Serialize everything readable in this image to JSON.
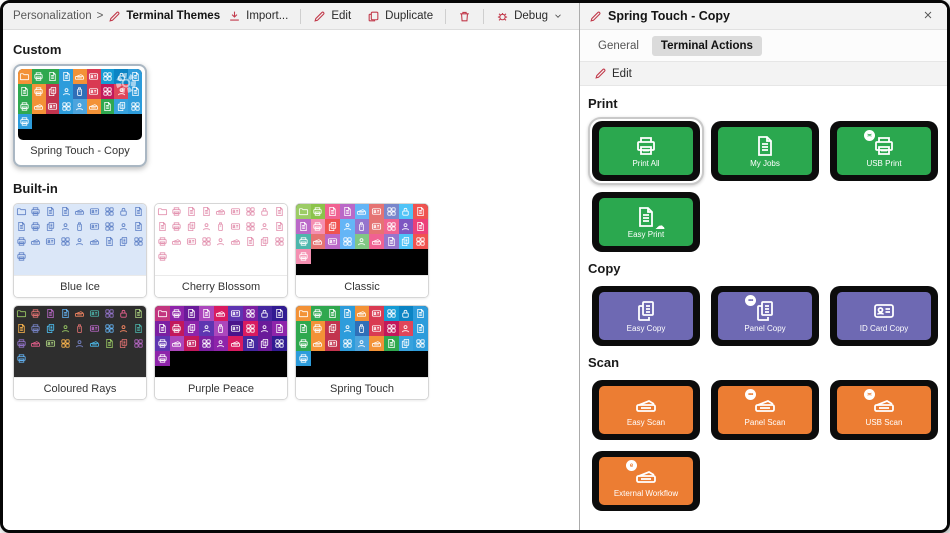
{
  "toolbar": {
    "breadcrumb": {
      "parent": "Personalization",
      "separator": ">",
      "current": "Terminal Themes"
    },
    "import_label": "Import...",
    "edit_label": "Edit",
    "duplicate_label": "Duplicate",
    "debug_label": "Debug",
    "accent_color": "#C23B4C"
  },
  "left_panel": {
    "sections": [
      {
        "title": "Custom",
        "themes": [
          {
            "name": "Spring Touch - Copy",
            "style": "mosaic",
            "bg": "#000000",
            "icon_color": "#FFFFFF",
            "selected": true,
            "overlay_icon": "gear-icon",
            "palette": [
              "#F39237",
              "#2FA84F",
              "#2FA84F",
              "#2D9CDB",
              "#F39237",
              "#D93A52",
              "#159BD4",
              "#0B84C4",
              "#2D9CDB",
              "#2FA84F",
              "#F39237",
              "#C2344E",
              "#2D9CDB",
              "#2F6FB8",
              "#D93A52",
              "#C2185B",
              "#E0465A",
              "#2D9CDB",
              "#2FA84F",
              "#F39237",
              "#C2344E",
              "#2D9CDB",
              "#4DA4DD",
              "#F39237",
              "#2FA84F",
              "#37A2DD",
              "#2D9CDB",
              "#2D9CDB"
            ]
          }
        ]
      },
      {
        "title": "Built-in",
        "themes": [
          {
            "name": "Blue Ice",
            "style": "outline",
            "bg": "#DBE7F8",
            "icon_color": "#5C7FC5",
            "selected": false
          },
          {
            "name": "Cherry Blossom",
            "style": "outline",
            "bg": "#FFFFFF",
            "icon_color": "#E28FAD",
            "selected": false
          },
          {
            "name": "Classic",
            "style": "mosaic",
            "bg": "#000000",
            "icon_color": "#FFFFFF",
            "selected": false,
            "palette": [
              "#9CCC65",
              "#8BC34A",
              "#F06292",
              "#BA68C8",
              "#64B5F6",
              "#E57373",
              "#7986CB",
              "#4FC3F7",
              "#EF5350",
              "#BA68C8",
              "#F48FB1",
              "#EF5350",
              "#64B5F6",
              "#9575CD",
              "#E57373",
              "#F06292",
              "#7E57C2",
              "#EC407A",
              "#4DB6AC",
              "#E57373",
              "#BA68C8",
              "#64B5F6",
              "#81C784",
              "#F06292",
              "#9575CD",
              "#4FC3F7",
              "#EF5350",
              "#F48FB1"
            ]
          },
          {
            "name": "Coloured Rays",
            "style": "outline-multi",
            "bg": "#2E2E2E",
            "selected": false,
            "palette": [
              "#9CCC65",
              "#E57373",
              "#BA68C8",
              "#64B5F6",
              "#FF8A65",
              "#4DB6AC",
              "#9575CD",
              "#F06292",
              "#AED581",
              "#FFB74D",
              "#7986CB",
              "#4FC3F7"
            ]
          },
          {
            "name": "Purple Peace",
            "style": "mosaic",
            "bg": "#000000",
            "icon_color": "#FFFFFF",
            "selected": false,
            "palette": [
              "#C2357F",
              "#8E24AA",
              "#6A1B9A",
              "#AB47BC",
              "#D81B60",
              "#5E35B1",
              "#7B1FA2",
              "#4527A0",
              "#311B92",
              "#7B1FA2",
              "#C2185B",
              "#8E24AA",
              "#5E35B1",
              "#AB47BC",
              "#4A148C",
              "#D81B60",
              "#6A1B9A",
              "#8E24AA",
              "#5E35B1",
              "#AB47BC",
              "#C2185B",
              "#7B1FA2",
              "#8E24AA",
              "#D81B60",
              "#4527A0",
              "#6A1B9A",
              "#311B92",
              "#8E24AA"
            ]
          },
          {
            "name": "Spring Touch",
            "style": "mosaic",
            "bg": "#000000",
            "icon_color": "#FFFFFF",
            "selected": false,
            "palette": [
              "#F39237",
              "#2FA84F",
              "#2FA84F",
              "#2D9CDB",
              "#F39237",
              "#D93A52",
              "#159BD4",
              "#0B84C4",
              "#2D9CDB",
              "#2FA84F",
              "#F39237",
              "#C2344E",
              "#2D9CDB",
              "#2F6FB8",
              "#D93A52",
              "#C2185B",
              "#E0465A",
              "#2D9CDB",
              "#2FA84F",
              "#F39237",
              "#C2344E",
              "#2D9CDB",
              "#4DA4DD",
              "#F39237",
              "#2FA84F",
              "#37A2DD",
              "#2D9CDB",
              "#2D9CDB"
            ]
          }
        ]
      }
    ]
  },
  "right_panel": {
    "title": "Spring Touch - Copy",
    "close_label": "✕",
    "tabs": [
      {
        "label": "General",
        "active": false
      },
      {
        "label": "Terminal Actions",
        "active": true
      }
    ],
    "edit_label": "Edit",
    "sections": [
      {
        "title": "Print",
        "color": "#2BA84F",
        "tiles": [
          {
            "label": "Print All",
            "icon": "printer",
            "selected": true
          },
          {
            "label": "My Jobs",
            "icon": "doc"
          },
          {
            "label": "USB Print",
            "icon": "printer",
            "badge": "usb"
          },
          {
            "label": "Easy Print",
            "icon": "doc",
            "cloud": true
          }
        ]
      },
      {
        "title": "Copy",
        "color": "#6E69B3",
        "tiles": [
          {
            "label": "Easy Copy",
            "icon": "pages"
          },
          {
            "label": "Panel Copy",
            "icon": "pages",
            "badge": "dots"
          },
          {
            "label": "ID Card Copy",
            "icon": "idcard"
          }
        ]
      },
      {
        "title": "Scan",
        "color": "#EC7D33",
        "tiles": [
          {
            "label": "Easy Scan",
            "icon": "scanner"
          },
          {
            "label": "Panel Scan",
            "icon": "scanner",
            "badge": "dots"
          },
          {
            "label": "USB Scan",
            "icon": "scanner",
            "badge": "usb"
          },
          {
            "label": "External Workflow",
            "icon": "scanner",
            "badge": "e"
          }
        ]
      }
    ]
  }
}
